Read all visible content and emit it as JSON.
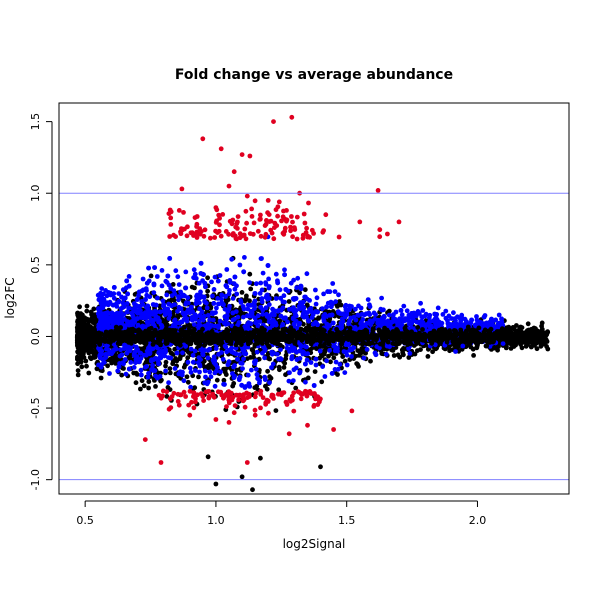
{
  "chart_data": {
    "type": "scatter",
    "title": "Fold change vs average abundance",
    "xlabel": "log2Signal",
    "ylabel": "log2FC",
    "xlim": [
      0.4,
      2.35
    ],
    "ylim": [
      -1.1,
      1.63
    ],
    "x_ticks": [
      0.5,
      1.0,
      1.5,
      2.0
    ],
    "x_tick_labels": [
      "0.5",
      "1.0",
      "1.5",
      "2.0"
    ],
    "y_ticks": [
      -1.0,
      -0.5,
      0.0,
      0.5,
      1.0,
      1.5
    ],
    "y_tick_labels": [
      "-1.0",
      "-0.5",
      "0.0",
      "0.5",
      "1.0",
      "1.5"
    ],
    "reference_lines_y": [
      1.0,
      -1.0
    ],
    "reference_line_color": "#8080ff",
    "grid": false,
    "legend": "none",
    "series_colors": {
      "not_significant": "#000000",
      "significant": "#0000ff",
      "large_change": "#e00020"
    },
    "representative_points": {
      "red_top": [
        [
          0.95,
          1.38
        ],
        [
          1.22,
          1.5
        ],
        [
          1.29,
          1.53
        ],
        [
          1.02,
          1.31
        ],
        [
          1.1,
          1.27
        ],
        [
          1.13,
          1.26
        ],
        [
          0.87,
          1.03
        ],
        [
          1.07,
          1.15
        ],
        [
          1.32,
          1.0
        ],
        [
          1.62,
          1.02
        ],
        [
          1.2,
          0.95
        ],
        [
          1.0,
          0.9
        ],
        [
          0.86,
          0.88
        ],
        [
          1.42,
          0.85
        ],
        [
          1.27,
          0.88
        ],
        [
          1.55,
          0.8
        ],
        [
          1.7,
          0.8
        ],
        [
          1.17,
          0.82
        ],
        [
          0.92,
          0.83
        ],
        [
          0.88,
          0.75
        ],
        [
          1.3,
          0.76
        ],
        [
          1.05,
          1.05
        ],
        [
          1.12,
          0.98
        ]
      ],
      "red_bottom": [
        [
          0.79,
          -0.88
        ],
        [
          1.12,
          -0.88
        ],
        [
          0.86,
          -0.48
        ],
        [
          1.05,
          -0.6
        ],
        [
          1.28,
          -0.68
        ],
        [
          1.45,
          -0.65
        ],
        [
          0.73,
          -0.72
        ],
        [
          1.0,
          -0.58
        ],
        [
          1.15,
          -0.55
        ],
        [
          1.35,
          -0.62
        ],
        [
          0.95,
          -0.42
        ],
        [
          1.25,
          -0.4
        ],
        [
          1.52,
          -0.52
        ],
        [
          0.9,
          -0.55
        ],
        [
          1.2,
          -0.45
        ]
      ],
      "black_outliers": [
        [
          1.14,
          -1.07
        ],
        [
          1.0,
          -1.03
        ],
        [
          1.1,
          -0.98
        ],
        [
          1.4,
          -0.91
        ],
        [
          1.17,
          -0.85
        ],
        [
          0.97,
          -0.84
        ],
        [
          2.25,
          -0.05
        ],
        [
          2.21,
          0.0
        ]
      ]
    }
  }
}
